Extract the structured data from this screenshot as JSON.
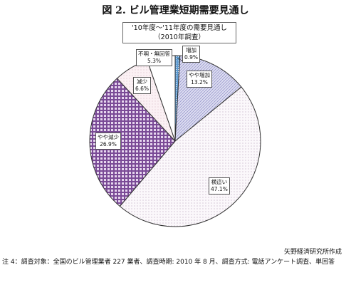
{
  "title": "図 2. ビル管理業短期需要見通し",
  "subtitle": [
    "'10年度～'11年度の需要見通し",
    "（2010年調査）"
  ],
  "source": "矢野経済研究所作成",
  "note": "注 4：調査対象：全国のビル管理業者 227 業者、調査時期: 2010 年 8 月、調査方式: 電話アンケート調査、単回答",
  "chart_data": {
    "type": "pie",
    "start": "12 o'clock",
    "direction": "clockwise",
    "slices": [
      {
        "label": "増加",
        "value_text": "0.9%",
        "value": 0.9,
        "fill": "#7fb2dd"
      },
      {
        "label": "やや増加",
        "value_text": "13.2%",
        "value": 13.2,
        "fill": "#d4d4ee"
      },
      {
        "label": "横這い",
        "value_text": "47.1%",
        "value": 47.1,
        "fill": "#fbf8fb"
      },
      {
        "label": "やや減少",
        "value_text": "26.9%",
        "value": 26.9,
        "fill": "#c1a3d3"
      },
      {
        "label": "減少",
        "value_text": "6.6%",
        "value": 6.6,
        "fill": "#f4e9ee"
      },
      {
        "label": "不明・無回答",
        "value_text": "5.3%",
        "value": 5.3,
        "fill": "#ffffff"
      }
    ]
  }
}
